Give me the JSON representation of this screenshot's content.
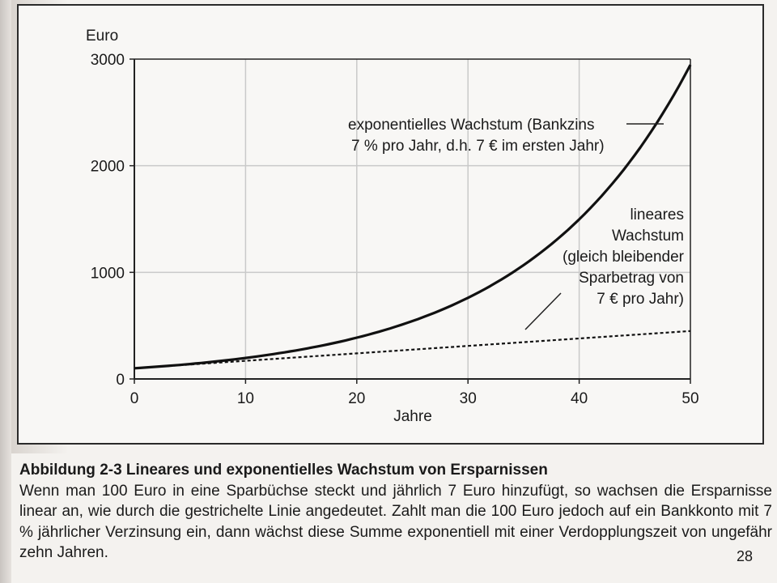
{
  "chart_data": {
    "type": "line",
    "ylabel": "Euro",
    "xlabel": "Jahre",
    "xlim": [
      0,
      50
    ],
    "ylim": [
      0,
      3000
    ],
    "x_ticks": [
      "0",
      "10",
      "20",
      "30",
      "40",
      "50"
    ],
    "y_ticks": [
      "0",
      "1000",
      "2000",
      "3000"
    ],
    "grid": true,
    "series": [
      {
        "name": "exponentielles Wachstum (Bankzins 7 % pro Jahr, d.h. 7 € im ersten Jahr)",
        "style": "solid",
        "x": [
          0,
          5,
          10,
          15,
          20,
          25,
          30,
          35,
          40,
          45,
          50
        ],
        "y": [
          100,
          140,
          197,
          276,
          387,
          543,
          761,
          1068,
          1497,
          2100,
          2946
        ]
      },
      {
        "name": "lineares Wachstum (gleich bleibender Sparbetrag von 7 € pro Jahr)",
        "style": "dashed",
        "x": [
          0,
          5,
          10,
          15,
          20,
          25,
          30,
          35,
          40,
          45,
          50
        ],
        "y": [
          100,
          135,
          170,
          205,
          240,
          275,
          310,
          345,
          380,
          415,
          450
        ]
      }
    ],
    "annotations": {
      "exponential": [
        "exponentielles Wachstum (Bankzins",
        "7 % pro Jahr, d.h. 7 € im ersten Jahr)"
      ],
      "linear": [
        "lineares",
        "Wachstum",
        "(gleich bleibender",
        "Sparbetrag von",
        "7 € pro Jahr)"
      ]
    }
  },
  "caption": {
    "title": "Abbildung 2-3 Lineares und exponentielles Wachstum von Ersparnissen",
    "body": "Wenn man 100 Euro in eine Sparbüchse steckt und jährlich 7 Euro hinzufügt, so wachsen die Ersparnisse linear an, wie durch die gestrichelte Linie angedeutet. Zahlt man die 100 Euro jedoch auf ein Bankkonto mit 7 % jährlicher Verzinsung ein, dann wächst diese Summe exponentiell mit einer Verdopplungszeit von ungefähr zehn Jahren."
  },
  "page_number": "28"
}
